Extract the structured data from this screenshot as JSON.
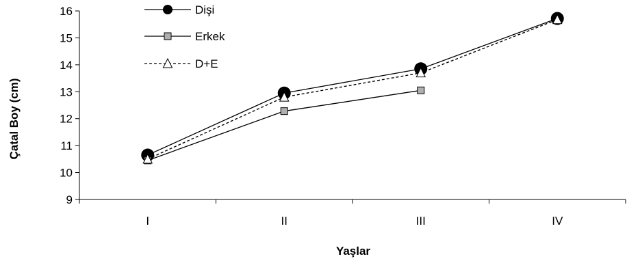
{
  "chart_data": {
    "type": "line",
    "title": "",
    "xlabel": "Yaşlar",
    "ylabel": "Çatal Boy (cm)",
    "categories": [
      "I",
      "II",
      "III",
      "IV"
    ],
    "ylim": [
      9,
      16
    ],
    "yticks": [
      9,
      10,
      11,
      12,
      13,
      14,
      15,
      16
    ],
    "grid": false,
    "legend_position": "top-left",
    "series": [
      {
        "name": "Dişi",
        "marker": "circle-filled",
        "line": "solid",
        "color": "#000000",
        "values": [
          10.65,
          12.95,
          13.85,
          15.72
        ]
      },
      {
        "name": "Erkek",
        "marker": "square-gray",
        "line": "solid",
        "color": "#000000",
        "values": [
          10.45,
          12.28,
          13.05,
          null
        ]
      },
      {
        "name": "D+E",
        "marker": "triangle-open",
        "line": "dashed",
        "color": "#000000",
        "values": [
          10.5,
          12.8,
          13.7,
          15.68
        ]
      }
    ]
  }
}
